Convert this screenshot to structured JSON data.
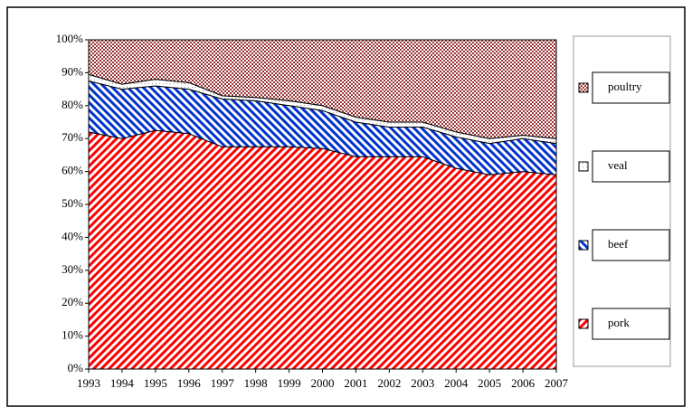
{
  "chart_data": {
    "type": "stacked_area_100",
    "x": [
      1993,
      1994,
      1995,
      1996,
      1997,
      1998,
      1999,
      2000,
      2001,
      2002,
      2003,
      2004,
      2005,
      2006,
      2007
    ],
    "xlim": [
      1993,
      2007
    ],
    "xticks": [
      1993,
      1994,
      1995,
      1996,
      1997,
      1998,
      1999,
      2000,
      2001,
      2002,
      2003,
      2004,
      2005,
      2006,
      2007
    ],
    "ylim": [
      0,
      100
    ],
    "yticks": [
      {
        "value": 0,
        "label": "0%"
      },
      {
        "value": 10,
        "label": "10%"
      },
      {
        "value": 20,
        "label": "20%"
      },
      {
        "value": 30,
        "label": "30%"
      },
      {
        "value": 40,
        "label": "40%"
      },
      {
        "value": 50,
        "label": "50%"
      },
      {
        "value": 60,
        "label": "60%"
      },
      {
        "value": 70,
        "label": "70%"
      },
      {
        "value": 80,
        "label": "80%"
      },
      {
        "value": 90,
        "label": "90%"
      },
      {
        "value": 100,
        "label": "100%"
      }
    ],
    "legend": "right",
    "series": [
      {
        "name": "pork",
        "color": "#ff0000",
        "values": [
          72,
          70,
          72.5,
          71.5,
          67.5,
          67.5,
          67.5,
          67,
          64.5,
          64.5,
          64.5,
          61,
          59,
          60,
          59
        ]
      },
      {
        "name": "beef",
        "color": "#0033cc",
        "values": [
          15.5,
          15,
          13.5,
          13.5,
          14.5,
          14,
          12.5,
          11.5,
          10.5,
          9,
          9,
          9.5,
          9.5,
          10,
          9.5
        ]
      },
      {
        "name": "veal",
        "color": "#ffffff",
        "values": [
          2,
          1.5,
          2,
          2,
          1,
          1,
          1.5,
          1.5,
          1.5,
          1.5,
          1.5,
          1.5,
          1.5,
          1,
          1.5
        ]
      },
      {
        "name": "poultry",
        "color": "#993333",
        "values": [
          10.5,
          13.5,
          12,
          13,
          17,
          17.5,
          18.5,
          20,
          23.5,
          25,
          25,
          28,
          30,
          29,
          30
        ]
      }
    ]
  }
}
